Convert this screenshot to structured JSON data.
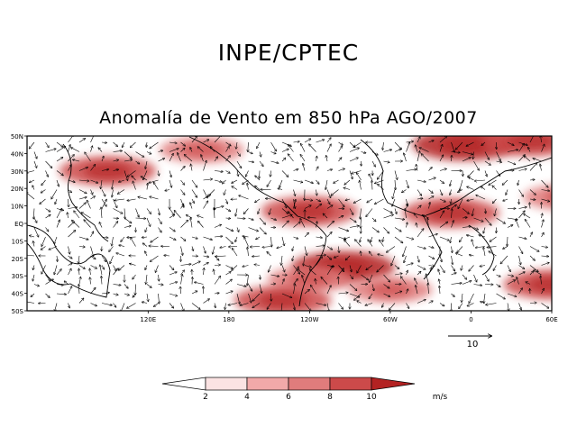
{
  "header": {
    "org": "INPE/CPTEC"
  },
  "chart_data": {
    "type": "vector-field-map",
    "title": "Anomalía de Vento em 850 hPa AGO/2007",
    "lat_ticks": [
      "50N",
      "40N",
      "30N",
      "20N",
      "10N",
      "EQ",
      "10S",
      "20S",
      "30S",
      "40S",
      "50S"
    ],
    "lon_ticks": [
      "120E",
      "180",
      "120W",
      "60W",
      "0",
      "60E"
    ],
    "lon_values": [
      120,
      180,
      240,
      300,
      360,
      420
    ],
    "lat_range": [
      -50,
      50
    ],
    "lon_range": [
      30,
      420
    ],
    "reference_vector": {
      "label": "10",
      "value": 10
    },
    "colorbar": {
      "values": [
        "2",
        "4",
        "6",
        "8",
        "10"
      ],
      "colors": [
        "#ffffff",
        "#fbe3e3",
        "#f2a9a9",
        "#e07c7c",
        "#cc4a4a",
        "#b32222"
      ],
      "units": "m/s"
    },
    "shading_regions": [
      {
        "name": "north-pacific-west",
        "lon": 90,
        "lat": 30,
        "level": 3
      },
      {
        "name": "north-pacific-central",
        "lon": 160,
        "lat": 42,
        "level": 2
      },
      {
        "name": "tropical-east-pacific",
        "lon": 240,
        "lat": 7,
        "level": 3
      },
      {
        "name": "south-pacific-subtropical",
        "lon": 265,
        "lat": -25,
        "level": 4
      },
      {
        "name": "south-pacific-high",
        "lon": 240,
        "lat": -32,
        "level": 2
      },
      {
        "name": "southern-ocean-pacific",
        "lon": 220,
        "lat": -44,
        "level": 3
      },
      {
        "name": "south-atlantic-west",
        "lon": 300,
        "lat": -38,
        "level": 2
      },
      {
        "name": "north-atlantic",
        "lon": 355,
        "lat": 45,
        "level": 4
      },
      {
        "name": "tropical-atlantic",
        "lon": 345,
        "lat": 6,
        "level": 3
      },
      {
        "name": "indian-ocean-north",
        "lon": 430,
        "lat": 15,
        "level": 2
      },
      {
        "name": "indian-ocean-south",
        "lon": 420,
        "lat": -35,
        "level": 3
      },
      {
        "name": "europe-north",
        "lon": 405,
        "lat": 47,
        "level": 3
      }
    ]
  }
}
